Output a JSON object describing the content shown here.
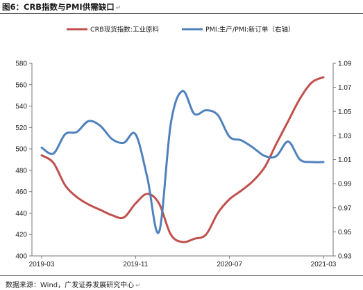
{
  "figure": {
    "title": "图6：CRB指数与PMI供需缺口",
    "source": "数据来源：Wind，广发证券发展研究中心",
    "return_mark": "↵"
  },
  "chart_data": {
    "type": "line",
    "title": "图6：CRB指数与PMI供需缺口",
    "legend_position": "top",
    "grid": false,
    "x": [
      "2019-03",
      "2019-04",
      "2019-05",
      "2019-06",
      "2019-07",
      "2019-08",
      "2019-09",
      "2019-10",
      "2019-11",
      "2019-12",
      "2020-01",
      "2020-02",
      "2020-03",
      "2020-04",
      "2020-05",
      "2020-06",
      "2020-07",
      "2020-08",
      "2020-09",
      "2020-10",
      "2020-11",
      "2020-12",
      "2021-01",
      "2021-02",
      "2021-03"
    ],
    "x_tick_labels": [
      "2019-03",
      "2019-11",
      "2020-07",
      "2021-03"
    ],
    "left_axis": {
      "min": 400,
      "max": 580,
      "ticks": [
        400,
        420,
        440,
        460,
        480,
        500,
        520,
        540,
        560,
        580
      ]
    },
    "right_axis": {
      "min": 0.93,
      "max": 1.09,
      "ticks": [
        "0.93",
        "0.95",
        "0.97",
        "0.99",
        "1.01",
        "1.03",
        "1.05",
        "1.07",
        "1.09"
      ]
    },
    "series": [
      {
        "name": "CRB现货指数:工业原料",
        "axis": "left",
        "color": "#c0504d",
        "values": [
          494,
          487,
          466,
          455,
          448,
          443,
          438,
          436,
          449,
          458,
          449,
          420,
          413,
          416,
          420,
          440,
          453,
          461,
          470,
          483,
          505,
          526,
          547,
          562,
          567
        ]
      },
      {
        "name": "PMI:生产/PMI:新订单（右轴）",
        "axis": "right",
        "color": "#4f81bd",
        "values": [
          1.02,
          1.015,
          1.031,
          1.033,
          1.042,
          1.038,
          1.027,
          1.024,
          1.031,
          0.995,
          0.95,
          1.04,
          1.067,
          1.048,
          1.051,
          1.047,
          1.029,
          1.026,
          1.02,
          1.013,
          1.013,
          1.025,
          1.01,
          1.008,
          1.008
        ]
      }
    ]
  }
}
